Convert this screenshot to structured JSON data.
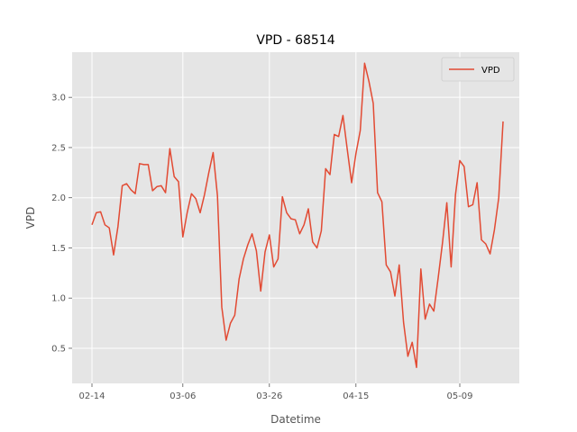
{
  "chart_data": {
    "type": "line",
    "title": "VPD - 68514",
    "xlabel": "Datetime",
    "ylabel": "VPD",
    "grid": true,
    "legend": "upper right",
    "colors": {
      "background": "#E5E5E5",
      "grid": "#FFFFFF",
      "series": "#E24A33"
    },
    "x_ticks": [
      "02-14",
      "03-06",
      "03-26",
      "04-15",
      "05-09"
    ],
    "y_ticks": [
      "0.5",
      "1.0",
      "1.5",
      "2.0",
      "2.5",
      "3.0"
    ],
    "ylim": [
      0.15,
      3.45
    ],
    "series": [
      {
        "name": "VPD",
        "start_date": "2000-02-14",
        "values": [
          1.73,
          1.85,
          1.86,
          1.73,
          1.7,
          1.43,
          1.71,
          2.12,
          2.14,
          2.08,
          2.04,
          2.34,
          2.33,
          2.33,
          2.07,
          2.11,
          2.12,
          2.05,
          2.49,
          2.21,
          2.16,
          1.61,
          1.85,
          2.04,
          1.99,
          1.85,
          2.03,
          2.25,
          2.45,
          2.02,
          0.91,
          0.58,
          0.75,
          0.83,
          1.19,
          1.39,
          1.53,
          1.64,
          1.47,
          1.07,
          1.46,
          1.63,
          1.31,
          1.39,
          2.01,
          1.85,
          1.79,
          1.78,
          1.64,
          1.73,
          1.89,
          1.56,
          1.5,
          1.67,
          2.29,
          2.23,
          2.63,
          2.61,
          2.82,
          2.48,
          2.15,
          2.44,
          2.67,
          3.34,
          3.16,
          2.94,
          2.05,
          1.96,
          1.33,
          1.26,
          1.02,
          1.33,
          0.76,
          0.42,
          0.56,
          0.31,
          1.29,
          0.79,
          0.94,
          0.87,
          1.2,
          1.55,
          1.95,
          1.31,
          2.03,
          2.37,
          2.31,
          1.91,
          1.93,
          2.15,
          1.58,
          1.54,
          1.44,
          1.68,
          2.0,
          2.76
        ]
      }
    ]
  }
}
